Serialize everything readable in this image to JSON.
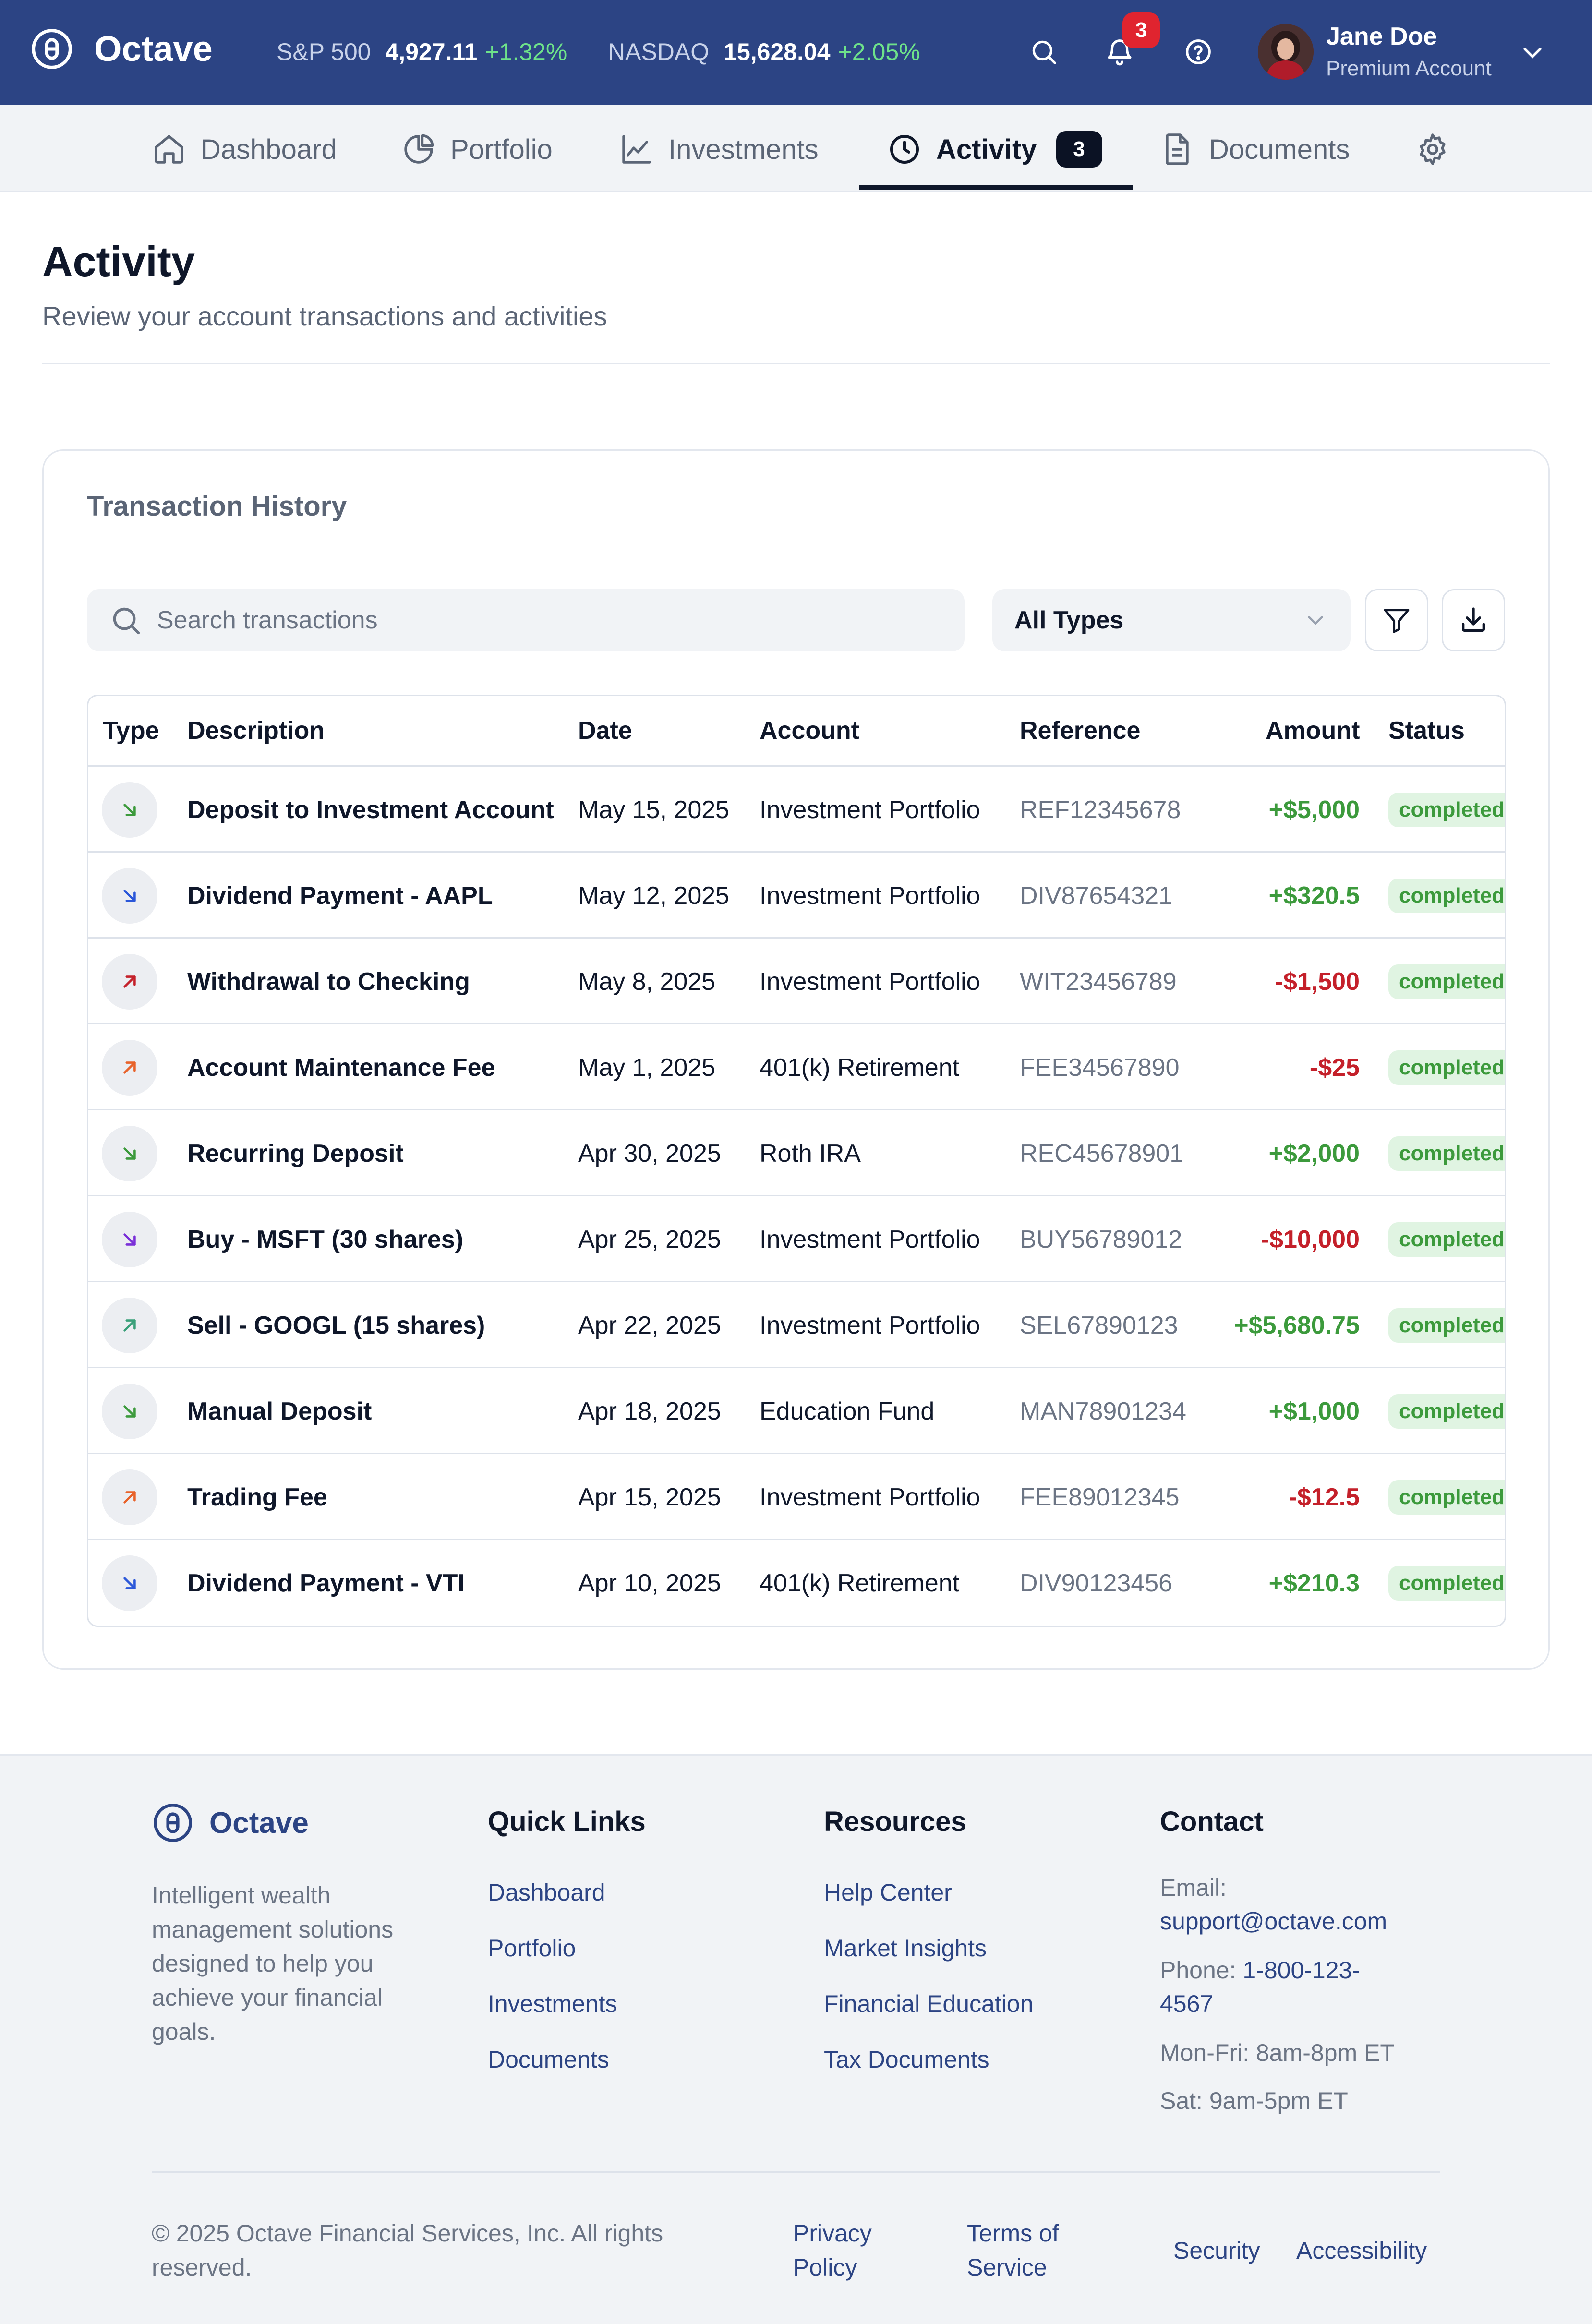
{
  "app": {
    "name": "Octave"
  },
  "tickers": [
    {
      "name": "S&P 500",
      "value": "4,927.11",
      "change": "+1.32%"
    },
    {
      "name": "NASDAQ",
      "value": "15,628.04",
      "change": "+2.05%"
    }
  ],
  "header": {
    "notification_count": "3"
  },
  "user": {
    "name": "Jane Doe",
    "plan": "Premium Account"
  },
  "nav": {
    "tabs": [
      {
        "label": "Dashboard",
        "icon": "home-icon"
      },
      {
        "label": "Portfolio",
        "icon": "pie-chart-icon"
      },
      {
        "label": "Investments",
        "icon": "line-chart-icon"
      },
      {
        "label": "Activity",
        "icon": "clock-icon",
        "badge": "3",
        "active": true
      },
      {
        "label": "Documents",
        "icon": "document-icon"
      }
    ],
    "settings_icon": "gear-icon"
  },
  "page": {
    "title": "Activity",
    "subtitle": "Review your account transactions and activities"
  },
  "transactions": {
    "title": "Transaction History",
    "search_placeholder": "Search transactions",
    "filter_value": "All Types",
    "columns": [
      "Type",
      "Description",
      "Date",
      "Account",
      "Reference",
      "Amount",
      "Status"
    ],
    "rows": [
      {
        "direction": "in",
        "icon_color": "#3c9a3c",
        "description": "Deposit to Investment Account",
        "date": "May 15, 2025",
        "account": "Investment Portfolio",
        "reference": "REF12345678",
        "amount": "+$5,000",
        "sign": "pos",
        "status": "completed"
      },
      {
        "direction": "in",
        "icon_color": "#2b57d9",
        "description": "Dividend Payment - AAPL",
        "date": "May 12, 2025",
        "account": "Investment Portfolio",
        "reference": "DIV87654321",
        "amount": "+$320.5",
        "sign": "pos",
        "status": "completed"
      },
      {
        "direction": "out",
        "icon_color": "#c4202a",
        "description": "Withdrawal to Checking",
        "date": "May 8, 2025",
        "account": "Investment Portfolio",
        "reference": "WIT23456789",
        "amount": "-$1,500",
        "sign": "neg",
        "status": "completed"
      },
      {
        "direction": "out",
        "icon_color": "#e8622a",
        "description": "Account Maintenance Fee",
        "date": "May 1, 2025",
        "account": "401(k) Retirement",
        "reference": "FEE34567890",
        "amount": "-$25",
        "sign": "neg",
        "status": "completed"
      },
      {
        "direction": "in",
        "icon_color": "#3c9a3c",
        "description": "Recurring Deposit",
        "date": "Apr 30, 2025",
        "account": "Roth IRA",
        "reference": "REC45678901",
        "amount": "+$2,000",
        "sign": "pos",
        "status": "completed"
      },
      {
        "direction": "in",
        "icon_color": "#7a2fd8",
        "description": "Buy - MSFT (30 shares)",
        "date": "Apr 25, 2025",
        "account": "Investment Portfolio",
        "reference": "BUY56789012",
        "amount": "-$10,000",
        "sign": "neg",
        "status": "completed"
      },
      {
        "direction": "out",
        "icon_color": "#3aa07a",
        "description": "Sell - GOOGL (15 shares)",
        "date": "Apr 22, 2025",
        "account": "Investment Portfolio",
        "reference": "SEL67890123",
        "amount": "+$5,680.75",
        "sign": "pos",
        "status": "completed"
      },
      {
        "direction": "in",
        "icon_color": "#3c9a3c",
        "description": "Manual Deposit",
        "date": "Apr 18, 2025",
        "account": "Education Fund",
        "reference": "MAN78901234",
        "amount": "+$1,000",
        "sign": "pos",
        "status": "completed"
      },
      {
        "direction": "out",
        "icon_color": "#e8622a",
        "description": "Trading Fee",
        "date": "Apr 15, 2025",
        "account": "Investment Portfolio",
        "reference": "FEE89012345",
        "amount": "-$12.5",
        "sign": "neg",
        "status": "completed"
      },
      {
        "direction": "in",
        "icon_color": "#2b57d9",
        "description": "Dividend Payment - VTI",
        "date": "Apr 10, 2025",
        "account": "401(k) Retirement",
        "reference": "DIV90123456",
        "amount": "+$210.3",
        "sign": "pos",
        "status": "completed"
      }
    ]
  },
  "footer": {
    "brand": "Octave",
    "about": "Intelligent wealth management solutions designed to help you achieve your financial goals.",
    "quick_links": {
      "title": "Quick Links",
      "items": [
        "Dashboard",
        "Portfolio",
        "Investments",
        "Documents"
      ]
    },
    "resources": {
      "title": "Resources",
      "items": [
        "Help Center",
        "Market Insights",
        "Financial Education",
        "Tax Documents"
      ]
    },
    "contact": {
      "title": "Contact",
      "email_label": "Email:",
      "email": "support@octave.com",
      "phone_label": "Phone:",
      "phone_part1": "1-800-123-",
      "phone_part2": "4567",
      "hours_weekday": "Mon-Fri: 8am-8pm ET",
      "hours_sat": "Sat: 9am-5pm ET"
    },
    "copyright": "© 2025 Octave Financial Services, Inc. All rights reserved.",
    "legal": {
      "privacy_1": "Privacy",
      "privacy_2": "Policy",
      "terms_1": "Terms of",
      "terms_2": "Service",
      "security": "Security",
      "accessibility": "Accessibility"
    }
  },
  "colors": {
    "header_bg": "#2c4484",
    "accent": "#2c4484",
    "positive": "#3c9a3c",
    "negative": "#c4202a"
  }
}
